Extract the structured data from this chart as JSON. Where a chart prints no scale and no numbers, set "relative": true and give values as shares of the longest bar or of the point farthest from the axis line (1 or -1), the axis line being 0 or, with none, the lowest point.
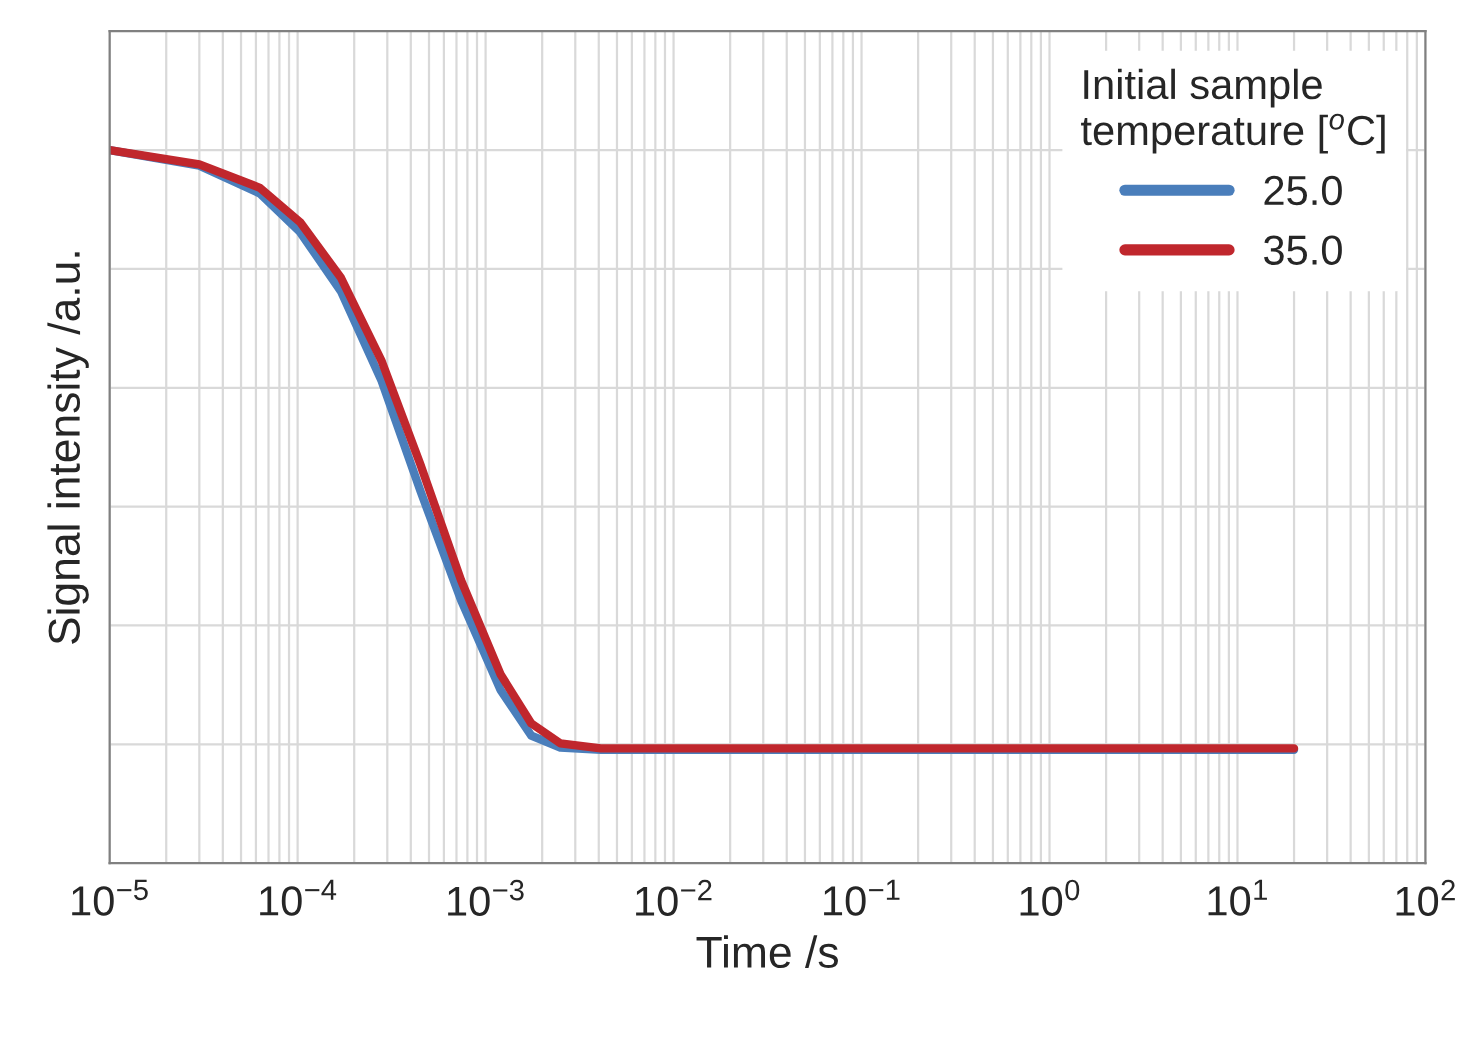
{
  "chart_data": {
    "type": "line",
    "relative": true,
    "log": "x",
    "xlabel": "Time /s",
    "ylabel": "Signal intensity /a.u.",
    "legend_title": "Initial sample\ntemperature [$^{o}$C]",
    "xlim": [
      1e-05,
      100
    ],
    "xticks": [
      {
        "value": 1e-05,
        "label": "10$^{−5}$"
      },
      {
        "value": 0.0001,
        "label": "10$^{−4}$"
      },
      {
        "value": 0.001,
        "label": "10$^{−3}$"
      },
      {
        "value": 0.01,
        "label": "10$^{−2}$"
      },
      {
        "value": 0.1,
        "label": "10$^{−1}$"
      },
      {
        "value": 1,
        "label": "10$^{0}$"
      },
      {
        "value": 10,
        "label": "10$^{1}$"
      },
      {
        "value": 100,
        "label": "10$^{2}$"
      }
    ],
    "grid": true,
    "legend": "top right",
    "line_style": "solid",
    "marker": "none",
    "series": [
      {
        "name": "25.0",
        "color": "#4a7ebb",
        "x": [
          1e-05,
          3e-05,
          6.3e-05,
          0.000103,
          0.00017,
          0.00028,
          0.00045,
          0.00074,
          0.0012,
          0.00175,
          0.0025,
          0.0041,
          20
        ],
        "values": [
          1,
          0.978,
          0.939,
          0.885,
          0.802,
          0.676,
          0.522,
          0.369,
          0.243,
          0.179,
          0.162,
          0.159,
          0.159
        ]
      },
      {
        "name": "35.0",
        "color": "#c0272d",
        "x": [
          1e-05,
          3e-05,
          6.3e-05,
          0.000103,
          0.00017,
          0.00028,
          0.00045,
          0.00074,
          0.0012,
          0.00175,
          0.0025,
          0.0041,
          20
        ],
        "values": [
          1,
          0.98,
          0.947,
          0.899,
          0.821,
          0.704,
          0.559,
          0.397,
          0.265,
          0.196,
          0.168,
          0.161,
          0.161
        ]
      }
    ]
  }
}
